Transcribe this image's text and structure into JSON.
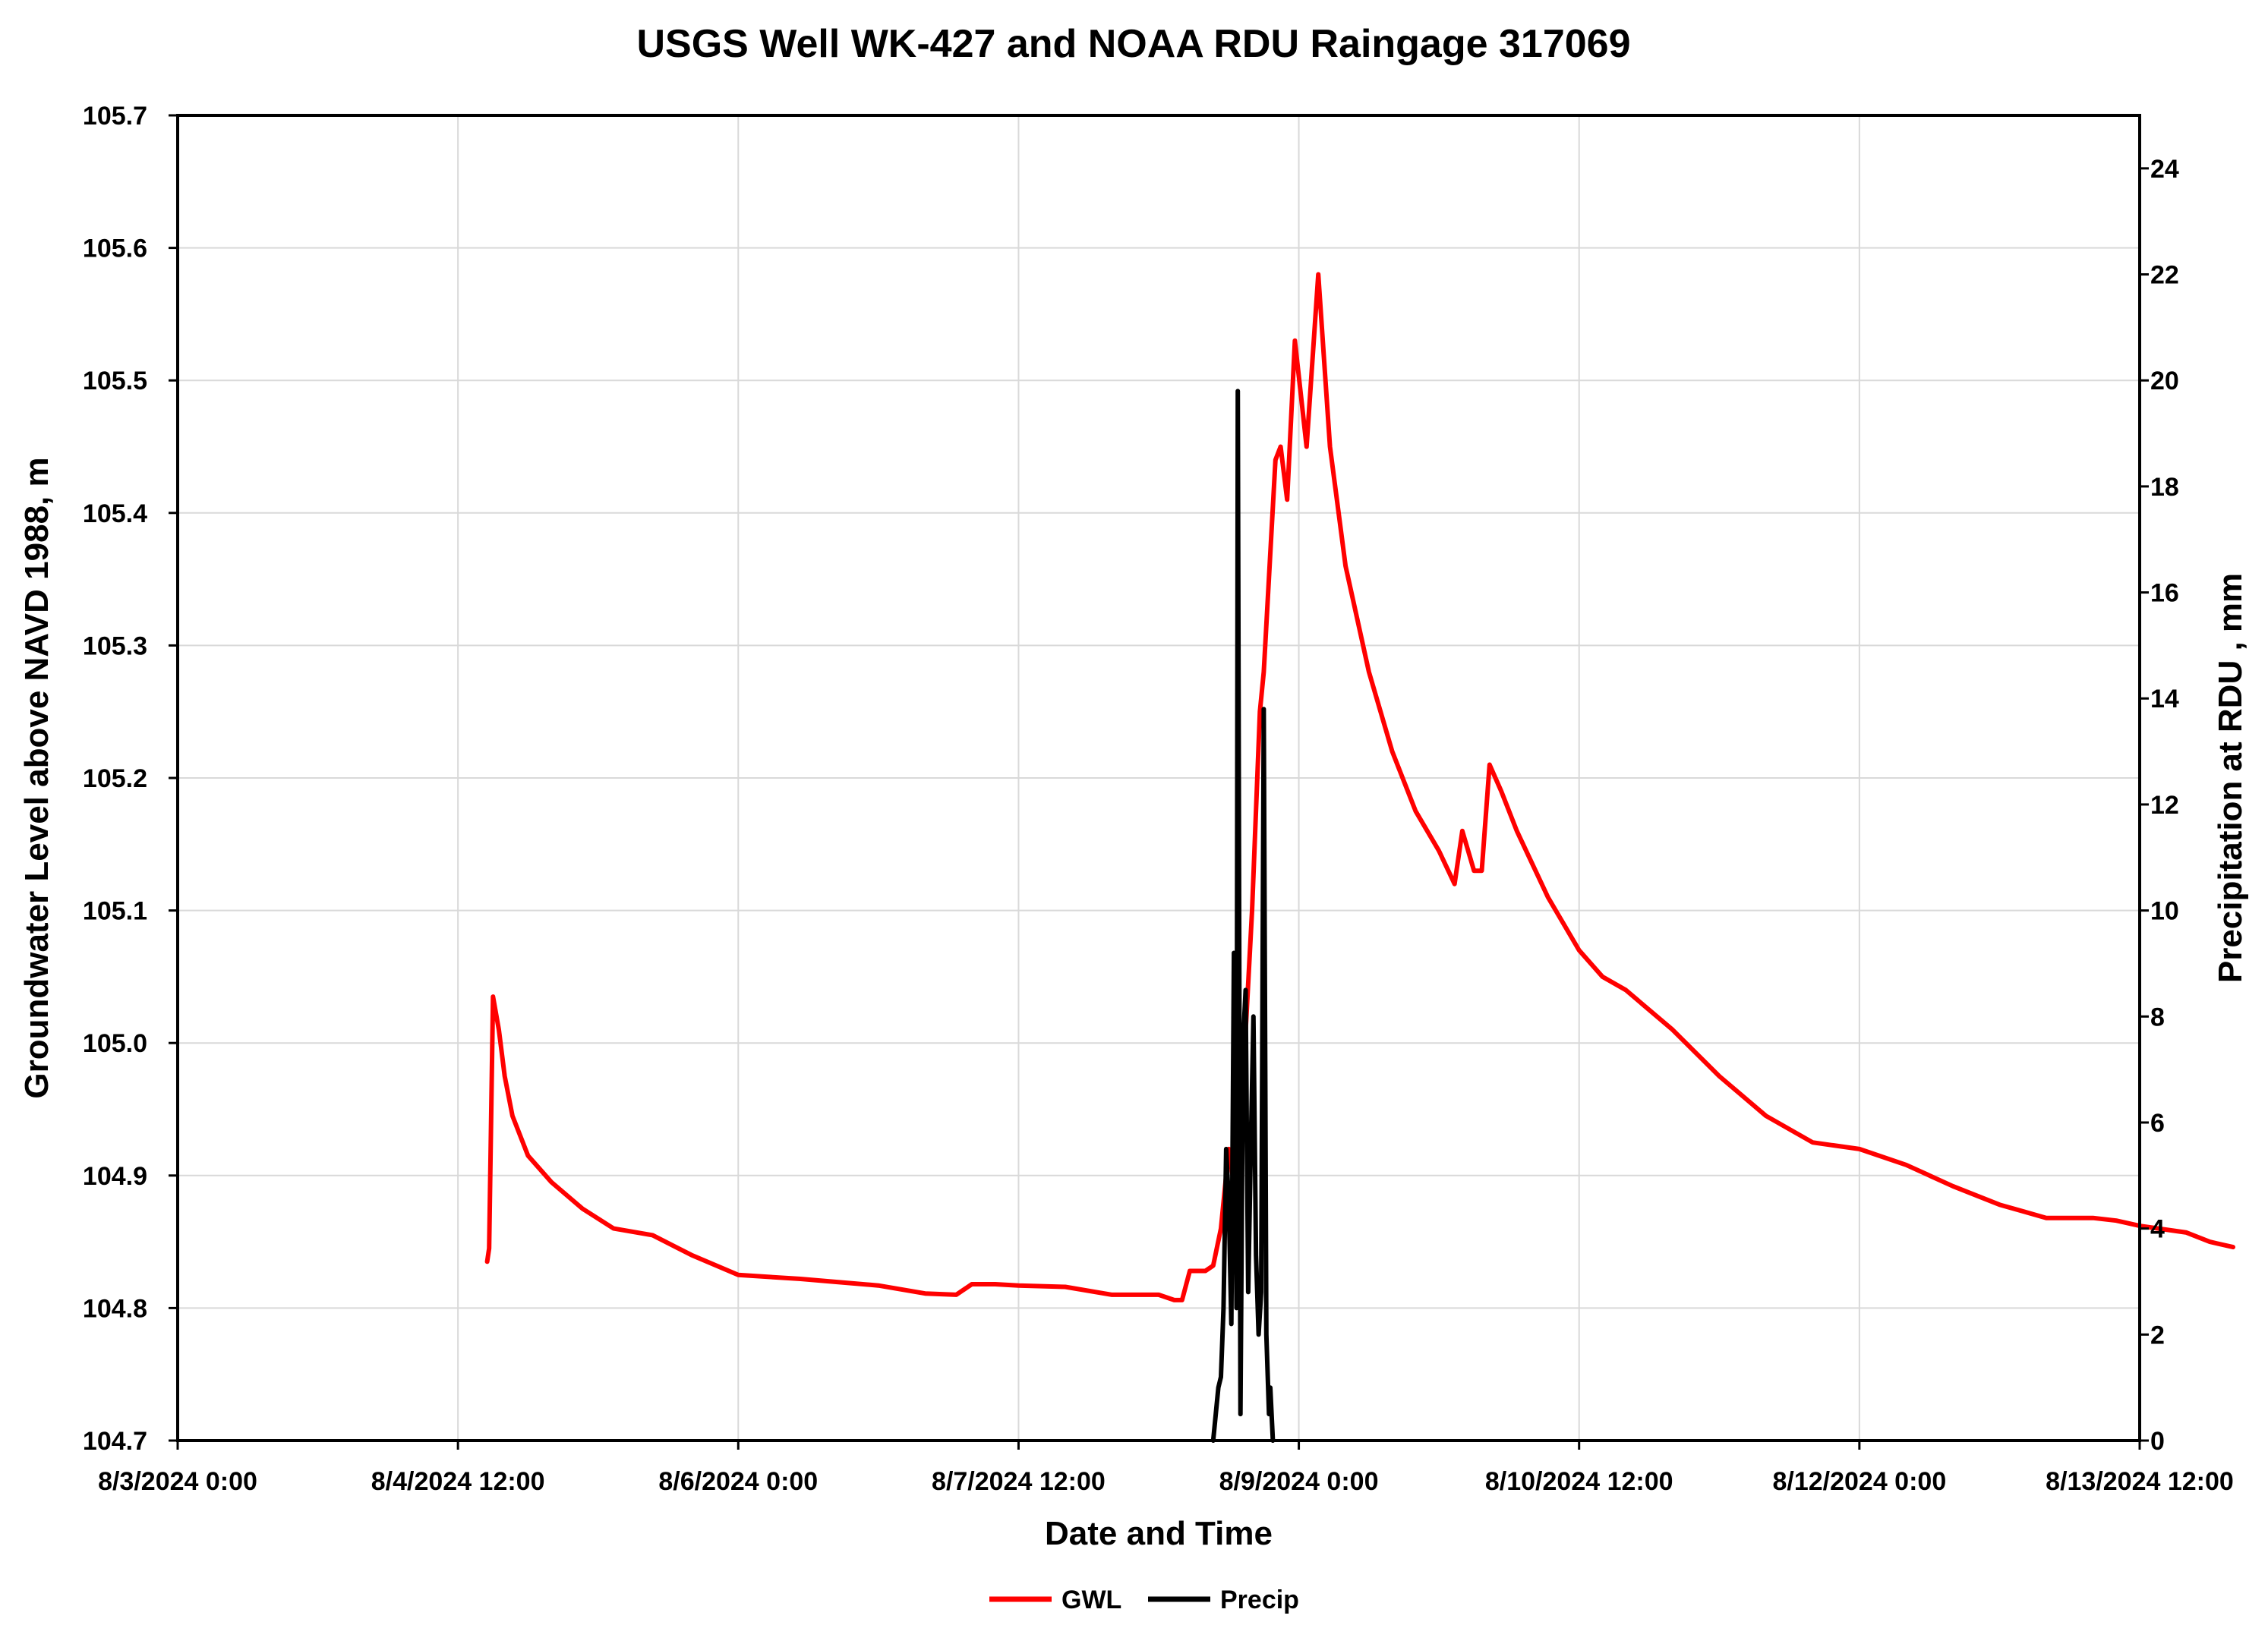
{
  "chart_data": {
    "type": "line",
    "title": "USGS Well WK-427 and NOAA RDU Raingage 317069",
    "xlabel": "Date and Time",
    "ylabel": "Groundwater Level above NAVD 1988, m",
    "y2label": "Precipitation at RDU , mm",
    "x_range": [
      "8/3/2024 0:00",
      "8/13/2024 12:00"
    ],
    "x_ticks": [
      "8/3/2024 0:00",
      "8/4/2024 12:00",
      "8/6/2024 0:00",
      "8/7/2024 12:00",
      "8/9/2024 0:00",
      "8/10/2024 12:00",
      "8/12/2024 0:00",
      "8/13/2024 12:00"
    ],
    "ylim": [
      104.7,
      105.7
    ],
    "y_ticks": [
      "104.7",
      "104.8",
      "104.9",
      "105.0",
      "105.1",
      "105.2",
      "105.3",
      "105.4",
      "105.5",
      "105.6",
      "105.7"
    ],
    "y2lim": [
      0,
      25
    ],
    "y2_ticks": [
      "0",
      "2",
      "4",
      "6",
      "8",
      "10",
      "12",
      "14",
      "16",
      "18",
      "20",
      "22",
      "24"
    ],
    "grid": true,
    "legend_position": "bottom",
    "series": [
      {
        "name": "GWL",
        "axis": "left",
        "color": "#ff0000",
        "points": [
          [
            "8/4/2024 15:45",
            104.835
          ],
          [
            "8/4/2024 16:00",
            104.845
          ],
          [
            "8/4/2024 16:30",
            105.035
          ],
          [
            "8/4/2024 17:15",
            105.01
          ],
          [
            "8/4/2024 18:00",
            104.975
          ],
          [
            "8/4/2024 19:00",
            104.945
          ],
          [
            "8/4/2024 21:00",
            104.915
          ],
          [
            "8/5/2024 0:00",
            104.895
          ],
          [
            "8/5/2024 4:00",
            104.875
          ],
          [
            "8/5/2024 8:00",
            104.86
          ],
          [
            "8/5/2024 13:00",
            104.855
          ],
          [
            "8/5/2024 18:00",
            104.84
          ],
          [
            "8/6/2024 0:00",
            104.825
          ],
          [
            "8/6/2024 8:00",
            104.822
          ],
          [
            "8/6/2024 12:00",
            104.82
          ],
          [
            "8/6/2024 18:00",
            104.817
          ],
          [
            "8/7/2024 0:00",
            104.811
          ],
          [
            "8/7/2024 4:00",
            104.81
          ],
          [
            "8/7/2024 6:00",
            104.818
          ],
          [
            "8/7/2024 9:00",
            104.818
          ],
          [
            "8/7/2024 12:00",
            104.817
          ],
          [
            "8/7/2024 18:00",
            104.816
          ],
          [
            "8/8/2024 0:00",
            104.81
          ],
          [
            "8/8/2024 6:00",
            104.81
          ],
          [
            "8/8/2024 8:00",
            104.806
          ],
          [
            "8/8/2024 9:00",
            104.806
          ],
          [
            "8/8/2024 10:00",
            104.828
          ],
          [
            "8/8/2024 12:00",
            104.828
          ],
          [
            "8/8/2024 13:00",
            104.832
          ],
          [
            "8/8/2024 14:00",
            104.86
          ],
          [
            "8/8/2024 15:00",
            104.92
          ],
          [
            "8/8/2024 16:00",
            104.88
          ],
          [
            "8/8/2024 17:00",
            104.99
          ],
          [
            "8/8/2024 18:00",
            105.1
          ],
          [
            "8/8/2024 19:00",
            105.25
          ],
          [
            "8/8/2024 19:30",
            105.28
          ],
          [
            "8/8/2024 21:00",
            105.44
          ],
          [
            "8/8/2024 21:40",
            105.45
          ],
          [
            "8/8/2024 22:30",
            105.41
          ],
          [
            "8/8/2024 23:30",
            105.53
          ],
          [
            "8/9/2024 1:00",
            105.45
          ],
          [
            "8/9/2024 2:30",
            105.58
          ],
          [
            "8/9/2024 4:00",
            105.45
          ],
          [
            "8/9/2024 6:00",
            105.36
          ],
          [
            "8/9/2024 9:00",
            105.28
          ],
          [
            "8/9/2024 12:00",
            105.22
          ],
          [
            "8/9/2024 15:00",
            105.175
          ],
          [
            "8/9/2024 18:00",
            105.145
          ],
          [
            "8/9/2024 20:00",
            105.12
          ],
          [
            "8/9/2024 21:00",
            105.16
          ],
          [
            "8/9/2024 22:30",
            105.13
          ],
          [
            "8/9/2024 23:30",
            105.13
          ],
          [
            "8/10/2024 0:30",
            105.21
          ],
          [
            "8/10/2024 2:00",
            105.19
          ],
          [
            "8/10/2024 4:00",
            105.16
          ],
          [
            "8/10/2024 8:00",
            105.11
          ],
          [
            "8/10/2024 12:00",
            105.07
          ],
          [
            "8/10/2024 15:00",
            105.05
          ],
          [
            "8/10/2024 18:00",
            105.04
          ],
          [
            "8/11/2024 0:00",
            105.01
          ],
          [
            "8/11/2024 6:00",
            104.975
          ],
          [
            "8/11/2024 12:00",
            104.945
          ],
          [
            "8/11/2024 18:00",
            104.925
          ],
          [
            "8/12/2024 0:00",
            104.92
          ],
          [
            "8/12/2024 6:00",
            104.908
          ],
          [
            "8/12/2024 12:00",
            104.892
          ],
          [
            "8/12/2024 18:00",
            104.878
          ],
          [
            "8/13/2024 0:00",
            104.868
          ],
          [
            "8/13/2024 6:00",
            104.868
          ],
          [
            "8/13/2024 9:00",
            104.866
          ],
          [
            "8/13/2024 12:00",
            104.862
          ],
          [
            "8/13/2024 18:00",
            104.857
          ],
          [
            "8/13/2024 21:00",
            104.85
          ],
          [
            "8/14/2024 0:00",
            104.846
          ]
        ]
      },
      {
        "name": "Precip",
        "axis": "right",
        "color": "#000000",
        "points": [
          [
            "8/8/2024 13:00",
            0
          ],
          [
            "8/8/2024 13:20",
            0.5
          ],
          [
            "8/8/2024 13:40",
            1.0
          ],
          [
            "8/8/2024 14:00",
            1.2
          ],
          [
            "8/8/2024 14:20",
            2.5
          ],
          [
            "8/8/2024 14:40",
            5.5
          ],
          [
            "8/8/2024 15:00",
            4.5
          ],
          [
            "8/8/2024 15:20",
            2.2
          ],
          [
            "8/8/2024 15:40",
            9.2
          ],
          [
            "8/8/2024 16:00",
            2.5
          ],
          [
            "8/8/2024 16:10",
            19.8
          ],
          [
            "8/8/2024 16:30",
            0.5
          ],
          [
            "8/8/2024 16:50",
            7.5
          ],
          [
            "8/8/2024 17:10",
            8.5
          ],
          [
            "8/8/2024 17:30",
            2.8
          ],
          [
            "8/8/2024 17:50",
            5.5
          ],
          [
            "8/8/2024 18:10",
            8.0
          ],
          [
            "8/8/2024 18:30",
            3.5
          ],
          [
            "8/8/2024 18:50",
            2.0
          ],
          [
            "8/8/2024 19:10",
            2.8
          ],
          [
            "8/8/2024 19:30",
            13.8
          ],
          [
            "8/8/2024 19:50",
            2.0
          ],
          [
            "8/8/2024 20:10",
            0.5
          ],
          [
            "8/8/2024 20:20",
            1.0
          ],
          [
            "8/8/2024 20:40",
            0
          ]
        ]
      }
    ]
  }
}
